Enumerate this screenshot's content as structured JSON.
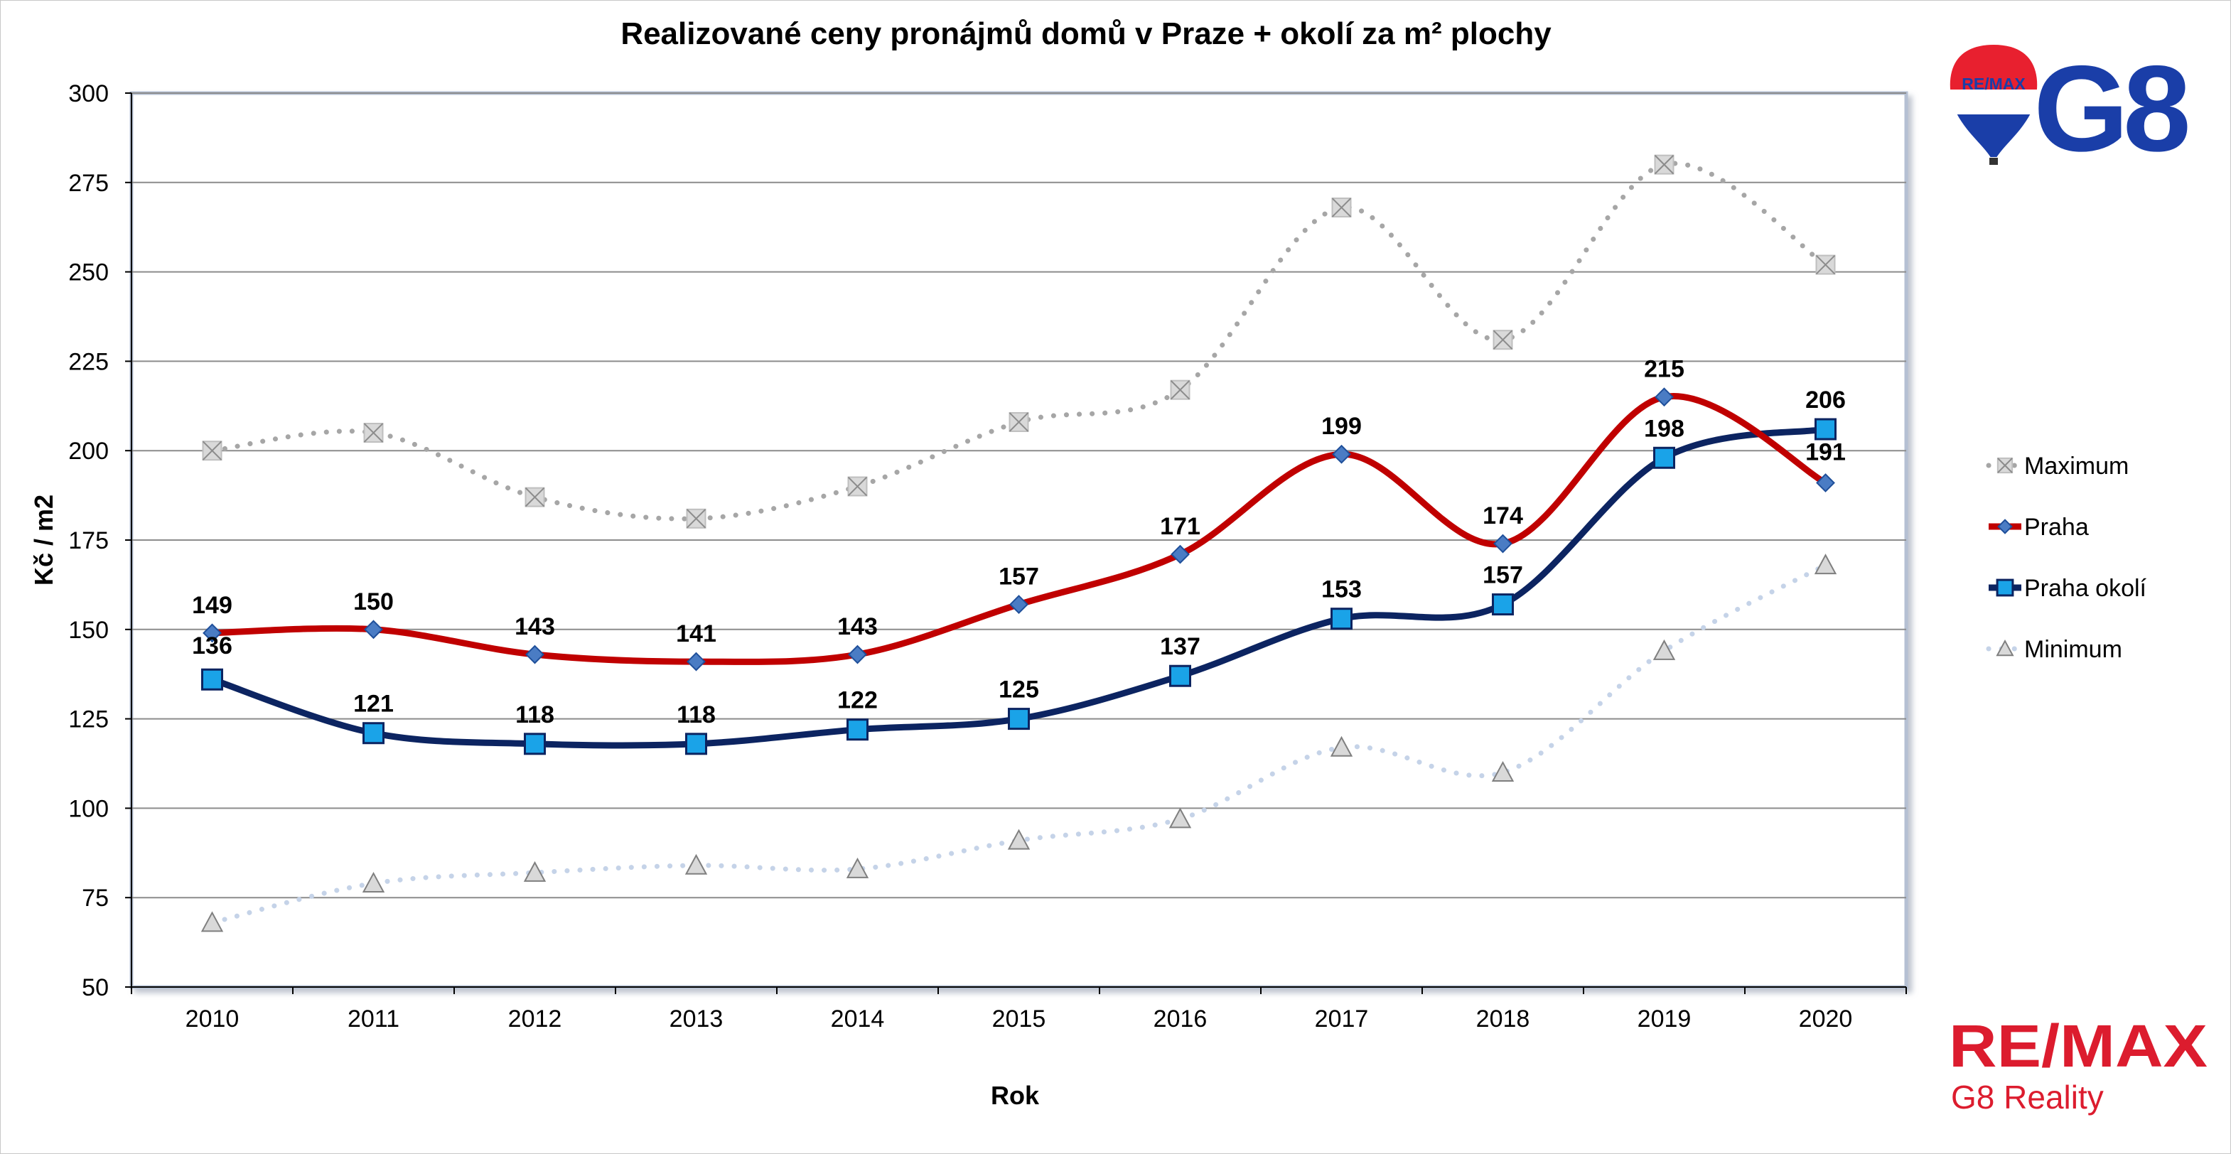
{
  "chart_data": {
    "type": "line",
    "title": "Realizované ceny pronájmů domů v Praze + okolí za m² plochy",
    "xlabel": "Rok",
    "ylabel": "Kč / m2",
    "ylim": [
      50,
      300
    ],
    "yticks": [
      50,
      75,
      100,
      125,
      150,
      175,
      200,
      225,
      250,
      275,
      300
    ],
    "categories": [
      "2010",
      "2011",
      "2012",
      "2013",
      "2014",
      "2015",
      "2016",
      "2017",
      "2018",
      "2019",
      "2020"
    ],
    "grid": true,
    "legend_position": "right",
    "series": [
      {
        "name": "Maximum",
        "values": [
          200,
          205,
          187,
          181,
          190,
          208,
          217,
          268,
          231,
          280,
          252
        ],
        "color": "#a6a6a6",
        "marker": "x-square",
        "line": "dotted",
        "labels": false
      },
      {
        "name": "Praha",
        "values": [
          149,
          150,
          143,
          141,
          143,
          157,
          171,
          199,
          174,
          215,
          191
        ],
        "color": "#c00000",
        "marker": "diamond",
        "line": "solid",
        "labels": true
      },
      {
        "name": "Praha okolí",
        "values": [
          136,
          121,
          118,
          118,
          122,
          125,
          137,
          153,
          157,
          198,
          206
        ],
        "color": "#0c2461",
        "marker": "square",
        "line": "solid",
        "labels": true
      },
      {
        "name": "Minimum",
        "values": [
          68,
          79,
          82,
          84,
          83,
          91,
          97,
          117,
          110,
          144,
          168
        ],
        "color": "#c5d3e8",
        "marker": "triangle",
        "line": "dotted",
        "labels": false
      }
    ]
  },
  "branding": {
    "logo_top_text": "G8",
    "balloon_text": "RE/MAX",
    "logo_bottom_main": "RE/MAX",
    "logo_bottom_sub": "G8 Reality",
    "brand_red": "#dc1c2e",
    "brand_blue": "#1a3ea8"
  }
}
